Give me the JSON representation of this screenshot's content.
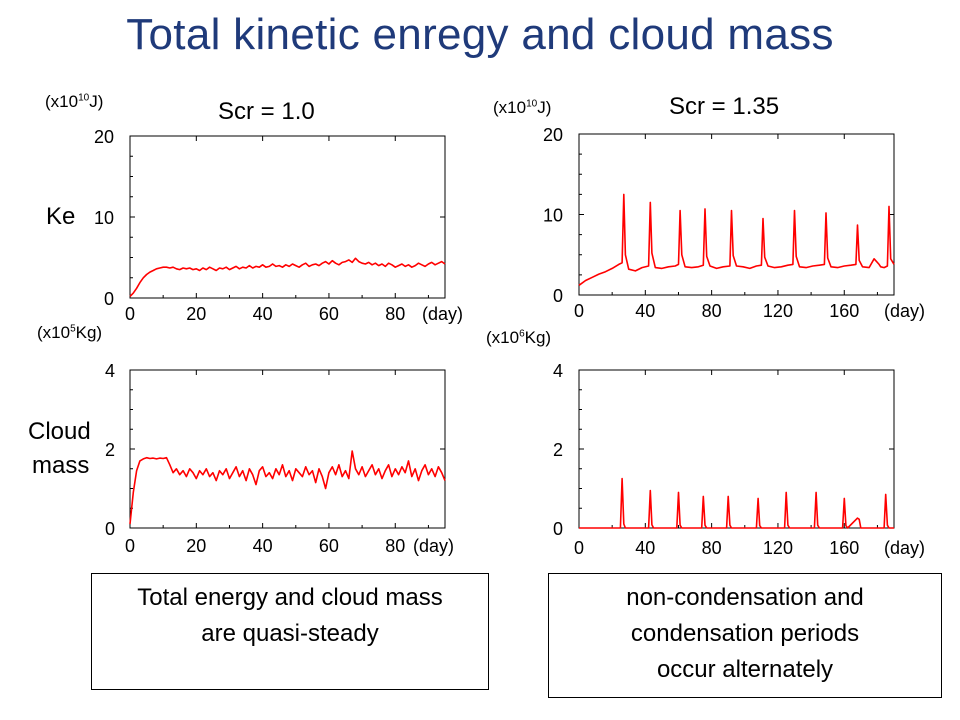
{
  "title": "Total kinetic enregy and cloud mass",
  "left_panel": {
    "heading": "Scr = 1.0"
  },
  "right_panel": {
    "heading": "Scr = 1.35"
  },
  "row_labels": {
    "ke": "Ke",
    "cloud_line1": "Cloud",
    "cloud_line2": "mass"
  },
  "units": {
    "ke_left_prefix": "(x10",
    "ke_left_exp": "10",
    "ke_left_suffix": "J)",
    "ke_right_prefix": "(x10",
    "ke_right_exp": "10",
    "ke_right_suffix": "J)",
    "cloud_left_prefix": "(x10",
    "cloud_left_exp": "5",
    "cloud_left_suffix": "Kg)",
    "cloud_right_prefix": "(x10",
    "cloud_right_exp": "6",
    "cloud_right_suffix": "Kg)"
  },
  "notes": {
    "left": [
      "Total energy and cloud mass",
      "are quasi-steady"
    ],
    "right": [
      "non-condensation and",
      "condensation periods",
      "occur alternately"
    ]
  },
  "colors": {
    "title": "#1f3a7a",
    "series": "#ff0000"
  },
  "chart_data": [
    {
      "type": "line",
      "panel": "Scr = 1.0",
      "quantity": "Ke",
      "xlabel": "(day)",
      "xlim": [
        0,
        95
      ],
      "ylim": [
        0,
        20
      ],
      "xticks": [
        0,
        20,
        40,
        60,
        80
      ],
      "yticks": [
        0,
        10,
        20
      ],
      "grid": false,
      "x": [
        0,
        1,
        2,
        3,
        4,
        5,
        6,
        7,
        8,
        9,
        10,
        11,
        12,
        13,
        14,
        15,
        16,
        17,
        18,
        19,
        20,
        21,
        22,
        23,
        24,
        25,
        26,
        27,
        28,
        29,
        30,
        31,
        32,
        33,
        34,
        35,
        36,
        37,
        38,
        39,
        40,
        41,
        42,
        43,
        44,
        45,
        46,
        47,
        48,
        49,
        50,
        51,
        52,
        53,
        54,
        55,
        56,
        57,
        58,
        59,
        60,
        61,
        62,
        63,
        64,
        65,
        66,
        67,
        68,
        69,
        70,
        71,
        72,
        73,
        74,
        75,
        76,
        77,
        78,
        79,
        80,
        81,
        82,
        83,
        84,
        85,
        86,
        87,
        88,
        89,
        90,
        91,
        92,
        93,
        94,
        95
      ],
      "series": [
        {
          "values": [
            0.2,
            0.6,
            1.2,
            1.9,
            2.5,
            2.9,
            3.2,
            3.4,
            3.6,
            3.7,
            3.8,
            3.8,
            3.7,
            3.8,
            3.6,
            3.5,
            3.7,
            3.6,
            3.7,
            3.5,
            3.6,
            3.4,
            3.7,
            3.5,
            3.8,
            3.6,
            3.4,
            3.7,
            3.6,
            3.8,
            3.5,
            3.7,
            3.9,
            3.6,
            3.8,
            3.7,
            4.0,
            3.7,
            3.9,
            3.8,
            4.1,
            3.8,
            3.9,
            4.2,
            3.9,
            4.0,
            3.8,
            4.1,
            3.9,
            4.2,
            4.0,
            3.8,
            4.1,
            4.3,
            3.9,
            4.1,
            4.2,
            4.0,
            4.3,
            4.5,
            4.2,
            4.6,
            4.3,
            4.1,
            4.4,
            4.5,
            4.7,
            4.4,
            4.9,
            4.5,
            4.3,
            4.2,
            4.4,
            4.1,
            4.3,
            4.0,
            4.2,
            3.9,
            4.3,
            4.1,
            3.8,
            4.0,
            4.2,
            3.9,
            4.1,
            3.8,
            4.0,
            4.3,
            4.1,
            3.9,
            4.2,
            4.4,
            4.1,
            4.3,
            4.5,
            4.2
          ]
        }
      ]
    },
    {
      "type": "line",
      "panel": "Scr = 1.0",
      "quantity": "Cloud mass",
      "xlabel": "(day)",
      "xlim": [
        0,
        95
      ],
      "ylim": [
        0,
        4
      ],
      "xticks": [
        0,
        20,
        40,
        60,
        80
      ],
      "yticks": [
        0,
        2,
        4
      ],
      "grid": false,
      "x": [
        0,
        1,
        2,
        3,
        4,
        5,
        6,
        7,
        8,
        9,
        10,
        11,
        12,
        13,
        14,
        15,
        16,
        17,
        18,
        19,
        20,
        21,
        22,
        23,
        24,
        25,
        26,
        27,
        28,
        29,
        30,
        31,
        32,
        33,
        34,
        35,
        36,
        37,
        38,
        39,
        40,
        41,
        42,
        43,
        44,
        45,
        46,
        47,
        48,
        49,
        50,
        51,
        52,
        53,
        54,
        55,
        56,
        57,
        58,
        59,
        60,
        61,
        62,
        63,
        64,
        65,
        66,
        67,
        68,
        69,
        70,
        71,
        72,
        73,
        74,
        75,
        76,
        77,
        78,
        79,
        80,
        81,
        82,
        83,
        84,
        85,
        86,
        87,
        88,
        89,
        90,
        91,
        92,
        93,
        94,
        95
      ],
      "series": [
        {
          "values": [
            0.1,
            0.9,
            1.45,
            1.7,
            1.75,
            1.78,
            1.76,
            1.77,
            1.75,
            1.77,
            1.76,
            1.78,
            1.6,
            1.4,
            1.5,
            1.35,
            1.45,
            1.3,
            1.5,
            1.4,
            1.25,
            1.45,
            1.35,
            1.5,
            1.3,
            1.4,
            1.2,
            1.45,
            1.35,
            1.5,
            1.25,
            1.4,
            1.55,
            1.3,
            1.45,
            1.2,
            1.5,
            1.35,
            1.1,
            1.45,
            1.55,
            1.3,
            1.4,
            1.25,
            1.5,
            1.35,
            1.6,
            1.3,
            1.45,
            1.2,
            1.5,
            1.4,
            1.3,
            1.55,
            1.35,
            1.45,
            1.15,
            1.5,
            1.3,
            1.0,
            1.4,
            1.55,
            1.35,
            1.6,
            1.3,
            1.45,
            1.25,
            1.95,
            1.5,
            1.35,
            1.55,
            1.3,
            1.45,
            1.6,
            1.35,
            1.5,
            1.25,
            1.45,
            1.6,
            1.3,
            1.5,
            1.35,
            1.55,
            1.4,
            1.7,
            1.3,
            1.5,
            1.2,
            1.45,
            1.6,
            1.35,
            1.5,
            1.3,
            1.55,
            1.4,
            1.2
          ]
        }
      ]
    },
    {
      "type": "line",
      "panel": "Scr = 1.35",
      "quantity": "Ke",
      "xlabel": "(day)",
      "xlim": [
        0,
        190
      ],
      "ylim": [
        0,
        20
      ],
      "xticks": [
        0,
        40,
        80,
        120,
        160
      ],
      "yticks": [
        0,
        10,
        20
      ],
      "grid": false,
      "x": [
        0,
        4,
        8,
        12,
        16,
        20,
        24,
        26,
        27,
        28,
        30,
        34,
        38,
        42,
        43,
        44,
        46,
        50,
        54,
        58,
        60,
        61,
        62,
        64,
        68,
        72,
        75,
        76,
        77,
        79,
        83,
        87,
        91,
        92,
        93,
        95,
        99,
        103,
        107,
        110,
        111,
        112,
        114,
        118,
        122,
        126,
        129,
        130,
        131,
        133,
        137,
        141,
        145,
        148,
        149,
        150,
        152,
        156,
        160,
        164,
        167,
        168,
        169,
        171,
        175,
        178,
        181,
        182,
        184,
        186,
        187,
        188,
        190
      ],
      "series": [
        {
          "values": [
            1.2,
            1.8,
            2.2,
            2.6,
            2.9,
            3.3,
            3.8,
            4.0,
            12.5,
            5.0,
            3.2,
            3.0,
            3.4,
            3.6,
            11.5,
            5.2,
            3.4,
            3.3,
            3.5,
            3.6,
            3.8,
            10.5,
            5.0,
            3.5,
            3.4,
            3.5,
            3.7,
            10.7,
            4.8,
            3.6,
            3.3,
            3.5,
            3.6,
            10.5,
            4.9,
            3.6,
            3.5,
            3.3,
            3.6,
            3.7,
            9.5,
            4.7,
            3.6,
            3.4,
            3.5,
            3.7,
            3.8,
            10.5,
            4.8,
            3.5,
            3.4,
            3.6,
            3.7,
            3.8,
            10.2,
            4.6,
            3.5,
            3.4,
            3.6,
            3.7,
            3.8,
            8.7,
            4.3,
            3.5,
            3.4,
            4.5,
            3.8,
            3.5,
            3.4,
            3.6,
            11.0,
            4.5,
            3.8
          ]
        }
      ]
    },
    {
      "type": "line",
      "panel": "Scr = 1.35",
      "quantity": "Cloud mass",
      "xlabel": "(day)",
      "xlim": [
        0,
        190
      ],
      "ylim": [
        0,
        4
      ],
      "xticks": [
        0,
        40,
        80,
        120,
        160
      ],
      "yticks": [
        0,
        2,
        4
      ],
      "grid": false,
      "x": [
        0,
        25,
        26,
        27,
        28,
        42,
        43,
        44,
        45,
        59,
        60,
        61,
        62,
        74,
        75,
        76,
        77,
        89,
        90,
        91,
        92,
        107,
        108,
        109,
        110,
        124,
        125,
        126,
        127,
        142,
        143,
        144,
        145,
        159,
        160,
        161,
        162,
        168,
        169,
        170,
        184,
        185,
        186,
        187,
        190
      ],
      "series": [
        {
          "values": [
            0,
            0,
            1.25,
            0.1,
            0,
            0,
            0.95,
            0.08,
            0,
            0,
            0.9,
            0.07,
            0,
            0,
            0.8,
            0.07,
            0,
            0,
            0.8,
            0.07,
            0,
            0,
            0.75,
            0.06,
            0,
            0,
            0.9,
            0.07,
            0,
            0,
            0.9,
            0.07,
            0,
            0,
            0.75,
            0.06,
            0,
            0.25,
            0.22,
            0,
            0,
            0.85,
            0.07,
            0,
            0
          ]
        }
      ]
    }
  ]
}
